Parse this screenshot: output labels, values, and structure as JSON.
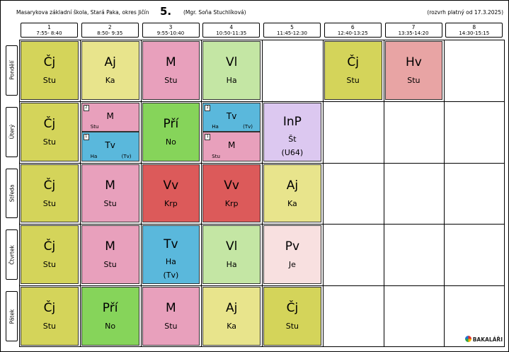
{
  "header": {
    "school": "Masarykova základní škola, Stará Paka, okres Jičín",
    "class_name": "5.",
    "teacher": "(Mgr. Soňa Stuchlíková)",
    "validity": "(rozvrh platný od 17.3.2025)"
  },
  "periods": [
    {
      "num": "1",
      "time": "7:55- 8:40"
    },
    {
      "num": "2",
      "time": "8:50- 9:35"
    },
    {
      "num": "3",
      "time": "9:55-10:40"
    },
    {
      "num": "4",
      "time": "10:50-11:35"
    },
    {
      "num": "5",
      "time": "11:45-12:30"
    },
    {
      "num": "6",
      "time": "12:40-13:25"
    },
    {
      "num": "7",
      "time": "13:35-14:20"
    },
    {
      "num": "8",
      "time": "14:30-15:15"
    }
  ],
  "days": [
    "Pondělí",
    "Úterý",
    "Středa",
    "Čtvrtek",
    "Pátek"
  ],
  "colors": {
    "cj": "#d4d45a",
    "aj": "#e8e48c",
    "m": "#e8a0bc",
    "vl": "#c4e6a4",
    "hv": "#e8a4a4",
    "pri": "#86d45a",
    "tv": "#5ab8dc",
    "inp": "#dcc8f0",
    "vv": "#dc5a5a",
    "pv": "#f8e0e0"
  },
  "lessons": [
    {
      "day": 0,
      "period": 0,
      "subject": "Čj",
      "teacher": "Stu",
      "color": "cj"
    },
    {
      "day": 0,
      "period": 1,
      "subject": "Aj",
      "teacher": "Ka",
      "color": "aj"
    },
    {
      "day": 0,
      "period": 2,
      "subject": "M",
      "teacher": "Stu",
      "color": "m"
    },
    {
      "day": 0,
      "period": 3,
      "subject": "Vl",
      "teacher": "Ha",
      "color": "vl"
    },
    {
      "day": 0,
      "period": 5,
      "subject": "Čj",
      "teacher": "Stu",
      "color": "cj"
    },
    {
      "day": 0,
      "period": 6,
      "subject": "Hv",
      "teacher": "Stu",
      "color": "hv"
    },
    {
      "day": 1,
      "period": 0,
      "subject": "Čj",
      "teacher": "Stu",
      "color": "cj"
    },
    {
      "day": 1,
      "period": 2,
      "subject": "Pří",
      "teacher": "No",
      "color": "pri"
    },
    {
      "day": 1,
      "period": 4,
      "subject": "InP",
      "teacher": "Št",
      "room": "(U64)",
      "color": "inp"
    },
    {
      "day": 2,
      "period": 0,
      "subject": "Čj",
      "teacher": "Stu",
      "color": "cj"
    },
    {
      "day": 2,
      "period": 1,
      "subject": "M",
      "teacher": "Stu",
      "color": "m"
    },
    {
      "day": 2,
      "period": 2,
      "subject": "Vv",
      "teacher": "Krp",
      "color": "vv"
    },
    {
      "day": 2,
      "period": 3,
      "subject": "Vv",
      "teacher": "Krp",
      "color": "vv"
    },
    {
      "day": 2,
      "period": 4,
      "subject": "Aj",
      "teacher": "Ka",
      "color": "aj"
    },
    {
      "day": 3,
      "period": 0,
      "subject": "Čj",
      "teacher": "Stu",
      "color": "cj"
    },
    {
      "day": 3,
      "period": 1,
      "subject": "M",
      "teacher": "Stu",
      "color": "m"
    },
    {
      "day": 3,
      "period": 2,
      "subject": "Tv",
      "teacher": "Ha",
      "room": "(Tv)",
      "color": "tv"
    },
    {
      "day": 3,
      "period": 3,
      "subject": "Vl",
      "teacher": "Ha",
      "color": "vl"
    },
    {
      "day": 3,
      "period": 4,
      "subject": "Pv",
      "teacher": "Je",
      "color": "pv"
    },
    {
      "day": 4,
      "period": 0,
      "subject": "Čj",
      "teacher": "Stu",
      "color": "cj"
    },
    {
      "day": 4,
      "period": 1,
      "subject": "Pří",
      "teacher": "No",
      "color": "pri"
    },
    {
      "day": 4,
      "period": 2,
      "subject": "M",
      "teacher": "Stu",
      "color": "m"
    },
    {
      "day": 4,
      "period": 3,
      "subject": "Aj",
      "teacher": "Ka",
      "color": "aj"
    },
    {
      "day": 4,
      "period": 4,
      "subject": "Čj",
      "teacher": "Stu",
      "color": "cj"
    }
  ],
  "split_lessons": [
    {
      "day": 1,
      "period": 1,
      "parts": [
        {
          "num": "2",
          "subject": "M",
          "teacher": "Stu",
          "group": "",
          "color": "m"
        },
        {
          "num": "1",
          "subject": "Tv",
          "teacher": "Ha",
          "group": "(Tv)",
          "color": "tv"
        }
      ]
    },
    {
      "day": 1,
      "period": 3,
      "parts": [
        {
          "num": "2",
          "subject": "Tv",
          "teacher": "Ha",
          "group": "(Tv)",
          "color": "tv"
        },
        {
          "num": "1",
          "subject": "M",
          "teacher": "Stu",
          "group": "",
          "color": "m"
        }
      ]
    }
  ],
  "logo_text": "BAKALÁŘI"
}
